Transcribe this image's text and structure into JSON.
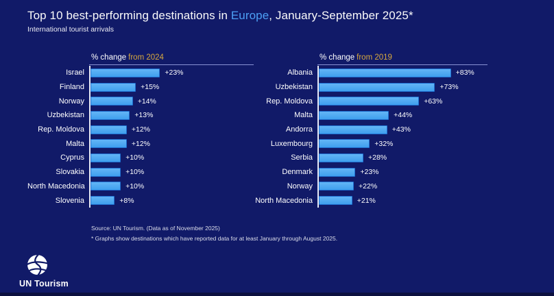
{
  "header": {
    "title_prefix": "Top 10 best-performing destinations in ",
    "title_region": "Europe",
    "title_suffix": ", January-September 2025*",
    "subtitle": "International tourist arrivals"
  },
  "chart_data": [
    {
      "type": "bar",
      "orientation": "horizontal",
      "title": "% change from 2024",
      "header_plain": "% change",
      "header_accent": "from 2024",
      "categories": [
        "Israel",
        "Finland",
        "Norway",
        "Uzbekistan",
        "Rep. Moldova",
        "Malta",
        "Cyprus",
        "Slovakia",
        "North Macedonia",
        "Slovenia"
      ],
      "values": [
        23,
        15,
        14,
        13,
        12,
        12,
        10,
        10,
        10,
        8
      ],
      "value_labels": [
        "+23%",
        "+15%",
        "+14%",
        "+13%",
        "+12%",
        "+12%",
        "+10%",
        "+10%",
        "+10%",
        "+8%"
      ],
      "unit": "%",
      "xlim": [
        0,
        54
      ],
      "bar_color": "#4aa6f0",
      "grid": false,
      "legend": false
    },
    {
      "type": "bar",
      "orientation": "horizontal",
      "title": "% change from 2019",
      "header_plain": "% change",
      "header_accent": "from 2019",
      "categories": [
        "Albania",
        "Uzbekistan",
        "Rep. Moldova",
        "Malta",
        "Andorra",
        "Luxembourg",
        "Serbia",
        "Denmark",
        "Norway",
        "North Macedonia"
      ],
      "values": [
        83,
        73,
        63,
        44,
        43,
        32,
        28,
        23,
        22,
        21
      ],
      "value_labels": [
        "+83%",
        "+73%",
        "+63%",
        "+44%",
        "+43%",
        "+32%",
        "+28%",
        "+23%",
        "+22%",
        "+21%"
      ],
      "unit": "%",
      "xlim": [
        0,
        106
      ],
      "bar_color": "#4aa6f0",
      "grid": false,
      "legend": false
    }
  ],
  "footer": {
    "source": "Source: UN Tourism. (Data as of November 2025)",
    "footnote": "* Graphs show destinations which have reported data for at least January through August 2025.",
    "logo_text": "UN Tourism"
  },
  "colors": {
    "background": "#111a68",
    "bar": "#4aa6f0",
    "accent_blue": "#4da0f5",
    "accent_gold": "#d8a83e",
    "axis_line": "#e6eaf6",
    "header_underline": "#8a93d4"
  }
}
